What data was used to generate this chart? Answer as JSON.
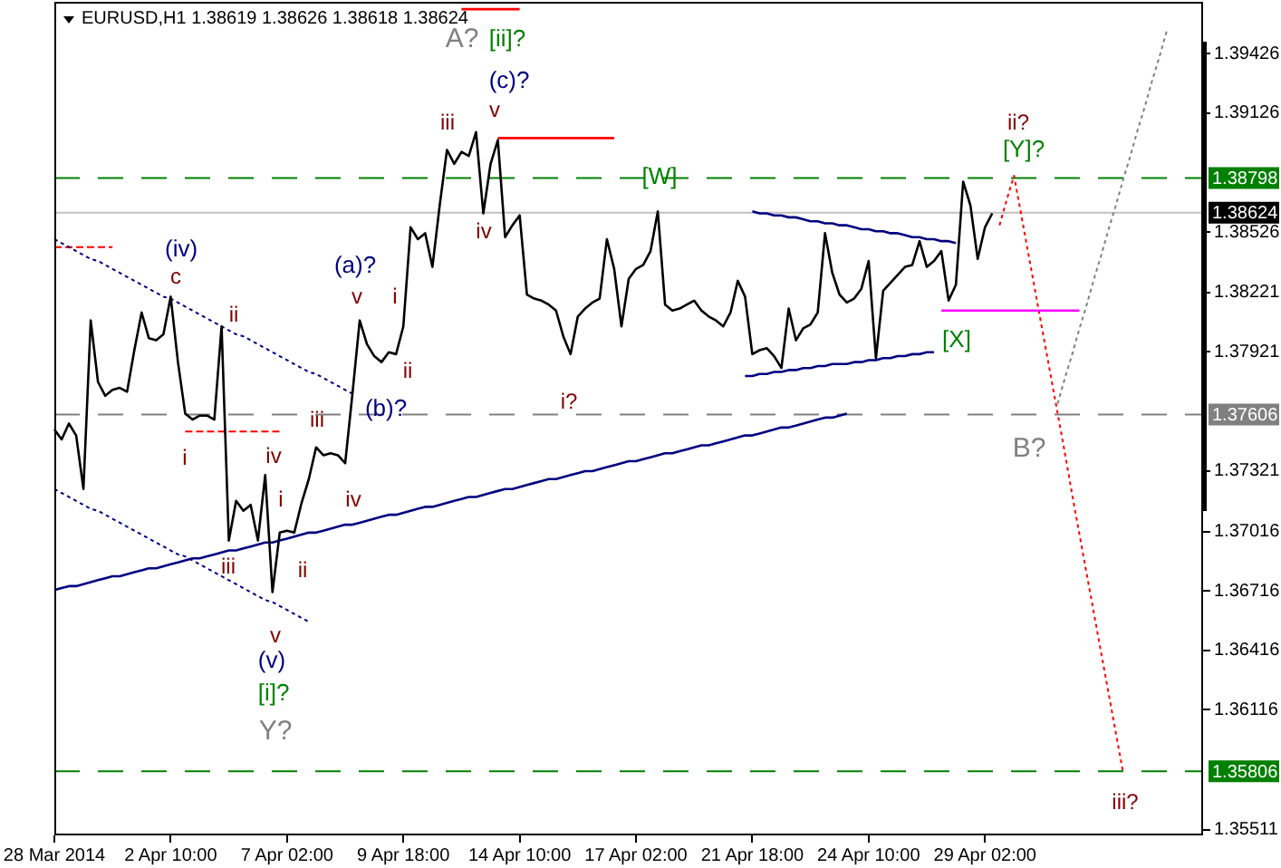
{
  "chart_data": {
    "type": "line",
    "title": "EURUSD,H1 1.38619 1.38626 1.38618 1.38624",
    "categories": [
      "28 Mar 2014",
      null,
      null,
      null,
      null,
      null,
      null,
      null,
      null,
      null,
      null,
      null,
      null,
      null,
      null,
      null,
      "2 Apr 10:00",
      null,
      null,
      null,
      null,
      null,
      null,
      null,
      null,
      null,
      null,
      null,
      null,
      null,
      null,
      null,
      "7 Apr 02:00",
      null,
      null,
      null,
      null,
      null,
      null,
      null,
      null,
      null,
      null,
      null,
      null,
      null,
      null,
      null,
      "9 Apr 18:00",
      null,
      null,
      null,
      null,
      null,
      null,
      null,
      null,
      null,
      null,
      null,
      null,
      null,
      null,
      null,
      "14 Apr 10:00",
      null,
      null,
      null,
      null,
      null,
      null,
      null,
      null,
      null,
      null,
      null,
      null,
      null,
      null,
      null,
      "17 Apr 02:00",
      null,
      null,
      null,
      null,
      null,
      null,
      null,
      null,
      null,
      null,
      null,
      null,
      null,
      null,
      null,
      "21 Apr 18:00",
      null,
      null,
      null,
      null,
      null,
      null,
      null,
      null,
      null,
      null,
      null,
      null,
      null,
      null,
      null,
      "24 Apr 10:00",
      null,
      null,
      null,
      null,
      null,
      null,
      null,
      null,
      null,
      null,
      null,
      null,
      null,
      null,
      null,
      "29 Apr 02:00",
      null,
      null,
      null,
      null,
      null,
      null,
      null,
      null,
      null,
      null,
      null,
      null,
      null,
      null,
      null,
      null,
      null,
      null,
      null,
      null,
      null,
      null,
      null,
      null,
      null,
      null,
      null,
      null,
      null,
      null
    ],
    "ylim": [
      1.35483,
      1.39687
    ],
    "yticks": [
      1.35511,
      1.36116,
      1.36416,
      1.36716,
      1.37016,
      1.37321,
      1.37921,
      1.38221,
      1.38526,
      1.39126,
      1.39426
    ],
    "series": [
      {
        "color": "#000000",
        "values": [
          1.3753,
          1.3748,
          1.3756,
          1.375,
          1.3723,
          1.3808,
          1.3777,
          1.377,
          1.3773,
          1.3774,
          1.3772,
          1.3793,
          1.3812,
          1.3799,
          1.3798,
          1.3801,
          1.382,
          1.3787,
          1.3761,
          1.3758,
          1.376,
          1.376,
          1.3758,
          1.3805,
          1.3697,
          1.3717,
          1.3712,
          1.3715,
          1.3697,
          1.373,
          1.3671,
          1.3701,
          1.3702,
          1.3701,
          1.3716,
          1.3728,
          1.3744,
          1.374,
          1.3741,
          1.374,
          1.3736,
          1.3771,
          1.3808,
          1.3796,
          1.379,
          1.3787,
          1.3792,
          1.3791,
          1.3805,
          1.3855,
          1.3849,
          1.3852,
          1.3835,
          1.3866,
          1.3894,
          1.3887,
          1.3893,
          1.3891,
          1.3903,
          1.3862,
          1.3887,
          1.3899,
          1.385,
          1.3856,
          1.3861,
          1.3821,
          1.3819,
          1.3818,
          1.3816,
          1.3813,
          1.38,
          1.3791,
          1.381,
          1.3814,
          1.3817,
          1.3819,
          1.3849,
          1.3834,
          1.3805,
          1.3829,
          1.3834,
          1.3836,
          1.3843,
          1.3863,
          1.3816,
          1.3813,
          1.3814,
          1.3816,
          1.3818,
          1.3813,
          1.381,
          1.3808,
          1.3805,
          1.3812,
          1.3828,
          1.382,
          1.3791,
          1.3793,
          1.3794,
          1.379,
          1.3784,
          1.3814,
          1.3798,
          1.3804,
          1.3806,
          1.3812,
          1.3852,
          1.3832,
          1.3821,
          1.3817,
          1.3819,
          1.3824,
          1.3838,
          1.3789,
          1.3823,
          1.3827,
          1.3831,
          1.3835,
          1.3836,
          1.3848,
          1.3835,
          1.3838,
          1.3843,
          1.3818,
          1.3826,
          1.3878,
          1.3866,
          1.3839,
          1.3855,
          1.3862,
          null,
          null,
          null,
          null,
          null,
          null,
          null,
          null,
          null,
          null,
          null,
          null,
          null,
          null,
          null,
          null,
          null,
          null,
          null,
          null,
          null,
          null,
          null,
          null,
          null,
          null,
          null,
          null,
          null
        ]
      },
      {
        "color": "#000080",
        "values": [
          1.3672,
          1.3673,
          1.3674,
          1.3674,
          1.3675,
          1.3676,
          1.3677,
          1.3678,
          1.3679,
          1.3679,
          1.368,
          1.3681,
          1.3682,
          1.3683,
          1.3683,
          1.3684,
          1.3685,
          1.3686,
          1.3687,
          1.3688,
          1.3688,
          1.3689,
          1.369,
          1.3691,
          1.3692,
          1.3692,
          1.3693,
          1.3694,
          1.3695,
          1.3696,
          1.3696,
          1.3697,
          1.3698,
          1.3699,
          1.37,
          1.3701,
          1.3701,
          1.3702,
          1.3703,
          1.3704,
          1.3705,
          1.3705,
          1.3706,
          1.3707,
          1.3708,
          1.3709,
          1.371,
          1.371,
          1.3711,
          1.3712,
          1.3713,
          1.3714,
          1.3714,
          1.3715,
          1.3716,
          1.3717,
          1.3718,
          1.3719,
          1.3719,
          1.372,
          1.3721,
          1.3722,
          1.3723,
          1.3723,
          1.3724,
          1.3725,
          1.3726,
          1.3727,
          1.3728,
          1.3728,
          1.3729,
          1.373,
          1.3731,
          1.3732,
          1.3732,
          1.3733,
          1.3734,
          1.3735,
          1.3736,
          1.3737,
          1.3737,
          1.3738,
          1.3739,
          1.374,
          1.3741,
          1.3741,
          1.3742,
          1.3743,
          1.3744,
          1.3745,
          1.3745,
          1.3746,
          1.3747,
          1.3748,
          1.3749,
          1.375,
          1.375,
          1.3751,
          1.3752,
          1.3753,
          1.3754,
          1.3754,
          1.3755,
          1.3756,
          1.3757,
          1.3758,
          1.3759,
          1.3759,
          1.376,
          1.3761,
          null,
          null,
          null,
          null,
          null,
          null,
          null,
          null,
          null,
          null,
          null,
          null,
          null,
          null,
          null,
          null,
          null,
          null,
          null,
          null,
          null,
          null,
          null,
          null,
          null,
          null,
          null,
          null,
          null,
          null,
          null,
          null,
          null,
          null,
          null,
          null,
          null,
          null,
          null,
          null,
          null,
          null,
          null,
          null,
          null,
          null,
          null,
          null,
          null
        ]
      },
      {
        "color": "#000080",
        "line_style": "dotted",
        "values": [
          1.3849,
          1.3847,
          1.3845,
          1.3843,
          1.3841,
          1.3839,
          1.3838,
          1.3836,
          1.3834,
          1.3832,
          1.383,
          1.3828,
          1.3826,
          1.3824,
          1.3822,
          1.382,
          1.3819,
          1.3817,
          1.3815,
          1.3813,
          1.3811,
          1.3809,
          1.3807,
          1.3805,
          1.3803,
          1.3801,
          1.38,
          1.3798,
          1.3796,
          1.3794,
          1.3792,
          1.379,
          1.3788,
          1.3786,
          1.3784,
          1.3782,
          1.3781,
          1.3779,
          1.3777,
          1.3775,
          1.3773,
          1.3771,
          null,
          null,
          null,
          null,
          null,
          null,
          null,
          null,
          null,
          null,
          null,
          null,
          null,
          null,
          null,
          null,
          null,
          null,
          null,
          null,
          null,
          null,
          null,
          null,
          null,
          null,
          null,
          null,
          null,
          null,
          null,
          null,
          null,
          null,
          null,
          null,
          null,
          null,
          null,
          null,
          null,
          null,
          null,
          null,
          null,
          null,
          null,
          null,
          null,
          null,
          null,
          null,
          null,
          null,
          null,
          null,
          null,
          null,
          null,
          null,
          null,
          null,
          null,
          null,
          null,
          null,
          null,
          null,
          null,
          null,
          null,
          null,
          null,
          null,
          null,
          null,
          null,
          null,
          null,
          null,
          null,
          null,
          null,
          null,
          null,
          null,
          null,
          null,
          null,
          null,
          null,
          null,
          null,
          null,
          null,
          null,
          null,
          null,
          null,
          null,
          null,
          null,
          null,
          null,
          null,
          null,
          null,
          null,
          null,
          null,
          null,
          null,
          null,
          null,
          null,
          null,
          null
        ]
      },
      {
        "color": "#000080",
        "line_style": "dotted",
        "values": [
          1.3723,
          1.3721,
          1.3719,
          1.3717,
          1.3715,
          1.3713,
          1.3712,
          1.371,
          1.3708,
          1.3706,
          1.3704,
          1.3702,
          1.37,
          1.3698,
          1.3696,
          1.3694,
          1.3692,
          1.369,
          1.3689,
          1.3687,
          1.3685,
          1.3683,
          1.3681,
          1.3679,
          1.3677,
          1.3675,
          1.3673,
          1.3671,
          1.3669,
          1.3667,
          1.3666,
          1.3664,
          1.3662,
          1.366,
          1.3658,
          1.3656,
          null,
          null,
          null,
          null,
          null,
          null,
          null,
          null,
          null,
          null,
          null,
          null,
          null,
          null,
          null,
          null,
          null,
          null,
          null,
          null,
          null,
          null,
          null,
          null,
          null,
          null,
          null,
          null,
          null,
          null,
          null,
          null,
          null,
          null,
          null,
          null,
          null,
          null,
          null,
          null,
          null,
          null,
          null,
          null,
          null,
          null,
          null,
          null,
          null,
          null,
          null,
          null,
          null,
          null,
          null,
          null,
          null,
          null,
          null,
          null,
          null,
          null,
          null,
          null,
          null,
          null,
          null,
          null,
          null,
          null,
          null,
          null,
          null,
          null,
          null,
          null,
          null,
          null,
          null,
          null,
          null,
          null,
          null,
          null,
          null,
          null,
          null,
          null,
          null,
          null,
          null,
          null,
          null,
          null,
          null,
          null,
          null,
          null,
          null,
          null,
          null,
          null,
          null,
          null,
          null,
          null,
          null,
          null,
          null,
          null,
          null,
          null,
          null,
          null,
          null,
          null,
          null,
          null,
          null,
          null,
          null,
          null,
          null
        ]
      },
      {
        "color": "#ff0000",
        "line_style": "dashed",
        "values": [
          1.3845,
          1.3845,
          1.3845,
          1.3845,
          1.3845,
          1.3845,
          1.3845,
          1.3845,
          1.3845,
          null,
          null,
          null,
          null,
          null,
          null,
          null,
          null,
          null,
          1.3752,
          1.3752,
          1.3752,
          1.3752,
          1.3752,
          1.3752,
          1.3752,
          1.3752,
          1.3752,
          1.3752,
          1.3752,
          1.3752,
          1.3752,
          1.3752,
          null,
          null,
          null,
          null,
          null,
          null,
          null,
          null,
          null,
          null,
          null,
          null,
          null,
          null,
          null,
          null,
          null,
          null,
          null,
          null,
          null,
          null,
          null,
          null,
          null,
          null,
          null,
          null,
          null,
          null,
          null,
          null,
          null,
          null,
          null,
          null,
          null,
          null,
          null,
          null,
          null,
          null,
          null,
          null,
          null,
          null,
          null,
          null,
          null,
          null,
          null,
          null,
          null,
          null,
          null,
          null,
          null,
          null,
          null,
          null,
          null,
          null,
          null,
          null,
          null,
          null,
          null,
          null,
          null,
          null,
          null,
          null,
          null,
          null,
          null,
          null,
          null,
          null,
          null,
          null,
          null,
          null,
          null,
          null,
          null,
          null,
          null,
          null,
          null,
          null,
          null,
          null,
          null,
          null,
          null,
          null,
          null,
          null,
          null,
          null,
          null,
          null,
          null,
          null,
          null,
          null,
          null,
          null,
          null,
          null,
          null,
          null,
          null,
          null,
          null,
          null,
          null,
          null,
          null,
          null,
          null,
          null,
          null,
          null,
          null,
          null,
          null
        ]
      },
      {
        "color": "#ff0000",
        "values": [
          null,
          null,
          null,
          null,
          null,
          null,
          null,
          null,
          null,
          null,
          null,
          null,
          null,
          null,
          null,
          null,
          null,
          null,
          null,
          null,
          null,
          null,
          null,
          null,
          null,
          null,
          null,
          null,
          null,
          null,
          null,
          null,
          null,
          null,
          null,
          null,
          null,
          null,
          null,
          null,
          null,
          null,
          null,
          null,
          null,
          null,
          null,
          null,
          null,
          null,
          null,
          null,
          null,
          null,
          null,
          null,
          null,
          null,
          null,
          null,
          null,
          1.39,
          1.39,
          1.39,
          1.39,
          1.39,
          1.39,
          1.39,
          1.39,
          1.39,
          1.39,
          1.39,
          1.39,
          1.39,
          1.39,
          1.39,
          1.39,
          1.39,
          null,
          null,
          null,
          null,
          null,
          null,
          null,
          null,
          null,
          null,
          null,
          null,
          null,
          null,
          null,
          null,
          null,
          null,
          null,
          null,
          null,
          null,
          null,
          null,
          null,
          null,
          null,
          null,
          null,
          null,
          null,
          null,
          null,
          null,
          null,
          null,
          null,
          null,
          null,
          null,
          null,
          null,
          null,
          null,
          null,
          null,
          null,
          null,
          null,
          null,
          null,
          null,
          null,
          null,
          null,
          null,
          null,
          null,
          null,
          null,
          null,
          null,
          null,
          null,
          null,
          null,
          null,
          null,
          null,
          null,
          null,
          null,
          null,
          null,
          null,
          null,
          null,
          null,
          null,
          null,
          null
        ]
      },
      {
        "color": "#ff0000",
        "values": [
          null,
          null,
          null,
          null,
          null,
          null,
          null,
          null,
          null,
          null,
          null,
          null,
          null,
          null,
          null,
          null,
          null,
          null,
          null,
          null,
          null,
          null,
          null,
          null,
          null,
          null,
          null,
          null,
          null,
          null,
          null,
          null,
          null,
          null,
          null,
          null,
          null,
          null,
          null,
          null,
          null,
          null,
          null,
          null,
          null,
          null,
          null,
          null,
          null,
          null,
          null,
          null,
          null,
          null,
          null,
          null,
          1.3965,
          1.3965,
          1.3965,
          1.3965,
          1.3965,
          1.3965,
          1.3965,
          1.3965,
          1.3965,
          null,
          null,
          null,
          null,
          null,
          null,
          null,
          null,
          null,
          null,
          null,
          null,
          null,
          null,
          null,
          null,
          null,
          null,
          null,
          null,
          null,
          null,
          null,
          null,
          null,
          null,
          null,
          null,
          null,
          null,
          null,
          null,
          null,
          null,
          null,
          null,
          null,
          null,
          null,
          null,
          null,
          null,
          null,
          null,
          null,
          null,
          null,
          null,
          null,
          null,
          null,
          null,
          null,
          null,
          null,
          null,
          null,
          null,
          null,
          null,
          null,
          null,
          null,
          null,
          null,
          null,
          null,
          null,
          null,
          null,
          null,
          null,
          null,
          null,
          null,
          null,
          null,
          null,
          null,
          null,
          null,
          null,
          null,
          null,
          null,
          null,
          null,
          null,
          null,
          null,
          null,
          null,
          null,
          null
        ]
      },
      {
        "color": "#000080",
        "values": [
          null,
          null,
          null,
          null,
          null,
          null,
          null,
          null,
          null,
          null,
          null,
          null,
          null,
          null,
          null,
          null,
          null,
          null,
          null,
          null,
          null,
          null,
          null,
          null,
          null,
          null,
          null,
          null,
          null,
          null,
          null,
          null,
          null,
          null,
          null,
          null,
          null,
          null,
          null,
          null,
          null,
          null,
          null,
          null,
          null,
          null,
          null,
          null,
          null,
          null,
          null,
          null,
          null,
          null,
          null,
          null,
          null,
          null,
          null,
          null,
          null,
          null,
          null,
          null,
          null,
          null,
          null,
          null,
          null,
          null,
          null,
          null,
          null,
          null,
          null,
          null,
          null,
          null,
          null,
          null,
          null,
          null,
          null,
          null,
          null,
          null,
          null,
          null,
          null,
          null,
          null,
          null,
          null,
          null,
          null,
          null,
          1.3863,
          1.3862,
          1.3862,
          1.3861,
          1.3861,
          1.386,
          1.386,
          1.3859,
          1.3858,
          1.3858,
          1.3857,
          1.3857,
          1.3856,
          1.3856,
          1.3855,
          1.3854,
          1.3854,
          1.3853,
          1.3853,
          1.3852,
          1.3852,
          1.3851,
          1.385,
          1.385,
          1.3849,
          1.3849,
          1.3848,
          1.3848,
          1.3847,
          null,
          null,
          null,
          null,
          null,
          null,
          null,
          null,
          null,
          null,
          null,
          null,
          null,
          null,
          null,
          null,
          null,
          null,
          null,
          null,
          null,
          null,
          null,
          null,
          null,
          null,
          null,
          null,
          null,
          null,
          null,
          null,
          null,
          null
        ]
      },
      {
        "color": "#000080",
        "values": [
          null,
          null,
          null,
          null,
          null,
          null,
          null,
          null,
          null,
          null,
          null,
          null,
          null,
          null,
          null,
          null,
          null,
          null,
          null,
          null,
          null,
          null,
          null,
          null,
          null,
          null,
          null,
          null,
          null,
          null,
          null,
          null,
          null,
          null,
          null,
          null,
          null,
          null,
          null,
          null,
          null,
          null,
          null,
          null,
          null,
          null,
          null,
          null,
          null,
          null,
          null,
          null,
          null,
          null,
          null,
          null,
          null,
          null,
          null,
          null,
          null,
          null,
          null,
          null,
          null,
          null,
          null,
          null,
          null,
          null,
          null,
          null,
          null,
          null,
          null,
          null,
          null,
          null,
          null,
          null,
          null,
          null,
          null,
          null,
          null,
          null,
          null,
          null,
          null,
          null,
          null,
          null,
          null,
          null,
          null,
          1.378,
          1.378,
          1.3781,
          1.3781,
          1.3782,
          1.3782,
          1.3783,
          1.3783,
          1.3784,
          1.3784,
          1.3785,
          1.3785,
          1.3786,
          1.3786,
          1.3786,
          1.3787,
          1.3787,
          1.3788,
          1.3788,
          1.3789,
          1.3789,
          1.379,
          1.379,
          1.3791,
          1.3791,
          1.3792,
          1.3792,
          null,
          null,
          null,
          null,
          null,
          null,
          null,
          null,
          null,
          null,
          null,
          null,
          null,
          null,
          null,
          null,
          null,
          null,
          null,
          null,
          null,
          null,
          null,
          null,
          null,
          null,
          null,
          null,
          null,
          null,
          null,
          null,
          null,
          null,
          null,
          null,
          null
        ]
      },
      {
        "color": "#ff00ff",
        "values": [
          null,
          null,
          null,
          null,
          null,
          null,
          null,
          null,
          null,
          null,
          null,
          null,
          null,
          null,
          null,
          null,
          null,
          null,
          null,
          null,
          null,
          null,
          null,
          null,
          null,
          null,
          null,
          null,
          null,
          null,
          null,
          null,
          null,
          null,
          null,
          null,
          null,
          null,
          null,
          null,
          null,
          null,
          null,
          null,
          null,
          null,
          null,
          null,
          null,
          null,
          null,
          null,
          null,
          null,
          null,
          null,
          null,
          null,
          null,
          null,
          null,
          null,
          null,
          null,
          null,
          null,
          null,
          null,
          null,
          null,
          null,
          null,
          null,
          null,
          null,
          null,
          null,
          null,
          null,
          null,
          null,
          null,
          null,
          null,
          null,
          null,
          null,
          null,
          null,
          null,
          null,
          null,
          null,
          null,
          null,
          null,
          null,
          null,
          null,
          null,
          null,
          null,
          null,
          null,
          null,
          null,
          null,
          null,
          null,
          null,
          null,
          null,
          null,
          null,
          null,
          null,
          null,
          null,
          null,
          null,
          null,
          null,
          1.3813,
          1.3813,
          1.3813,
          1.3813,
          1.3813,
          1.3813,
          1.3813,
          1.3813,
          1.3813,
          1.3813,
          1.3813,
          1.3813,
          1.3813,
          1.3813,
          1.3813,
          1.3813,
          1.3813,
          1.3813,
          1.3813,
          1.3813,
          null,
          null,
          null,
          null,
          null,
          null,
          null,
          null,
          null,
          null,
          null,
          null,
          null,
          null,
          null,
          null,
          null
        ]
      },
      {
        "color": "#ff0000",
        "line_style": "dotted",
        "values": [
          null,
          null,
          null,
          null,
          null,
          null,
          null,
          null,
          null,
          null,
          null,
          null,
          null,
          null,
          null,
          null,
          null,
          null,
          null,
          null,
          null,
          null,
          null,
          null,
          null,
          null,
          null,
          null,
          null,
          null,
          null,
          null,
          null,
          null,
          null,
          null,
          null,
          null,
          null,
          null,
          null,
          null,
          null,
          null,
          null,
          null,
          null,
          null,
          null,
          null,
          null,
          null,
          null,
          null,
          null,
          null,
          null,
          null,
          null,
          null,
          null,
          null,
          null,
          null,
          null,
          null,
          null,
          null,
          null,
          null,
          null,
          null,
          null,
          null,
          null,
          null,
          null,
          null,
          null,
          null,
          null,
          null,
          null,
          null,
          null,
          null,
          null,
          null,
          null,
          null,
          null,
          null,
          null,
          null,
          null,
          null,
          null,
          null,
          null,
          null,
          null,
          null,
          null,
          null,
          null,
          null,
          null,
          null,
          null,
          null,
          null,
          null,
          null,
          null,
          null,
          null,
          null,
          null,
          null,
          null,
          null,
          null,
          null,
          null,
          null,
          null,
          null,
          null,
          null,
          null,
          1.3856,
          1.3869,
          1.3881,
          1.3861,
          1.3841,
          1.3821,
          1.3801,
          1.3781,
          1.3761,
          1.3741,
          1.372,
          1.37,
          1.368,
          1.366,
          1.364,
          1.362,
          1.36,
          1.358,
          null,
          null,
          null,
          null,
          null,
          null,
          null,
          null,
          null,
          null,
          null
        ]
      },
      {
        "color": "#808080",
        "line_style": "dotted",
        "values": [
          null,
          null,
          null,
          null,
          null,
          null,
          null,
          null,
          null,
          null,
          null,
          null,
          null,
          null,
          null,
          null,
          null,
          null,
          null,
          null,
          null,
          null,
          null,
          null,
          null,
          null,
          null,
          null,
          null,
          null,
          null,
          null,
          null,
          null,
          null,
          null,
          null,
          null,
          null,
          null,
          null,
          null,
          null,
          null,
          null,
          null,
          null,
          null,
          null,
          null,
          null,
          null,
          null,
          null,
          null,
          null,
          null,
          null,
          null,
          null,
          null,
          null,
          null,
          null,
          null,
          null,
          null,
          null,
          null,
          null,
          null,
          null,
          null,
          null,
          null,
          null,
          null,
          null,
          null,
          null,
          null,
          null,
          null,
          null,
          null,
          null,
          null,
          null,
          null,
          null,
          null,
          null,
          null,
          null,
          null,
          null,
          null,
          null,
          null,
          null,
          null,
          null,
          null,
          null,
          null,
          null,
          null,
          null,
          null,
          null,
          null,
          null,
          null,
          null,
          null,
          null,
          null,
          null,
          null,
          null,
          null,
          null,
          null,
          null,
          null,
          null,
          null,
          null,
          null,
          null,
          null,
          null,
          null,
          null,
          null,
          null,
          null,
          null,
          1.3766,
          1.3779,
          1.3791,
          1.3804,
          1.3816,
          1.3829,
          1.3841,
          1.3854,
          1.3866,
          1.3879,
          1.3891,
          1.3904,
          1.3916,
          1.3929,
          1.3941,
          1.3954,
          null,
          null,
          null,
          null,
          null
        ]
      }
    ],
    "ref_lines": [
      {
        "axis": "y",
        "value": 1.38798,
        "label": "1.38798",
        "color": "#008000",
        "line_style": "dashed"
      },
      {
        "axis": "y",
        "value": 1.38624,
        "label": "1.38624",
        "color": "#c0c0c0",
        "line_style": "solid"
      },
      {
        "axis": "y",
        "value": 1.37606,
        "label": "1.37606",
        "color": "#808080",
        "line_style": "dashed"
      },
      {
        "axis": "y",
        "value": 1.35806,
        "label": "1.35806",
        "color": "#008000",
        "line_style": "dashed"
      }
    ],
    "annotations": [
      "A?",
      "[ii]?",
      "(c)?",
      "v",
      "iii",
      "iv",
      "[W]",
      "i?",
      "ii?",
      "[Y]?",
      "[X]",
      "B?",
      "iii?",
      "(iv)",
      "c",
      "ii",
      "(a)?",
      "v",
      "i",
      "ii",
      "(b)?",
      "iii",
      "i",
      "iv",
      "i",
      "iii",
      "ii",
      "iv",
      "v",
      "(v)",
      "[i]?",
      "Y?"
    ]
  }
}
